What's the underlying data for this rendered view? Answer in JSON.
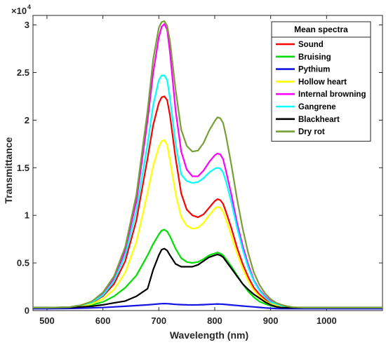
{
  "chart_data": {
    "type": "line",
    "xlabel": "Wavelength (nm)",
    "ylabel": "Transmittance",
    "y_exponent_label": "×10",
    "y_exponent_power": "4",
    "xlim": [
      475,
      1100
    ],
    "ylim": [
      0,
      31000
    ],
    "x_ticks": [
      500,
      600,
      700,
      800,
      900,
      1000
    ],
    "x_tick_labels": [
      "500",
      "600",
      "700",
      "800",
      "900",
      "1000"
    ],
    "y_ticks": [
      0,
      5000,
      10000,
      15000,
      20000,
      25000,
      30000
    ],
    "y_tick_labels": [
      "0",
      "0.5",
      "1",
      "1.5",
      "2",
      "2.5",
      "3"
    ],
    "grid": false,
    "legend": {
      "title": "Mean spectra",
      "position": "top-right"
    },
    "x": [
      475,
      500,
      540,
      560,
      580,
      600,
      620,
      640,
      660,
      680,
      690,
      700,
      705,
      710,
      715,
      720,
      730,
      740,
      750,
      760,
      770,
      780,
      790,
      800,
      805,
      810,
      815,
      820,
      830,
      840,
      850,
      860,
      870,
      880,
      890,
      900,
      910,
      920,
      930,
      940,
      960,
      1000,
      1100
    ],
    "series": [
      {
        "name": "Sound",
        "color": "#ff0000",
        "values": [
          300,
          300,
          350,
          500,
          800,
          1500,
          2800,
          5200,
          9500,
          16000,
          19500,
          21800,
          22400,
          22500,
          22100,
          20500,
          16000,
          12300,
          10600,
          10000,
          9800,
          10100,
          10800,
          11500,
          11700,
          11600,
          11200,
          10400,
          8600,
          6600,
          4900,
          3500,
          2400,
          1700,
          1200,
          800,
          600,
          450,
          350,
          300,
          300,
          300,
          300
        ]
      },
      {
        "name": "Bruising",
        "color": "#00dd00",
        "values": [
          300,
          300,
          350,
          450,
          600,
          900,
          1500,
          2400,
          3700,
          5800,
          7000,
          8000,
          8400,
          8500,
          8300,
          7800,
          6500,
          5500,
          5100,
          5000,
          5100,
          5400,
          5800,
          6000,
          6100,
          6000,
          5800,
          5400,
          4600,
          3700,
          2800,
          2000,
          1400,
          950,
          700,
          500,
          400,
          350,
          300,
          300,
          300,
          300,
          300
        ]
      },
      {
        "name": "Pythium",
        "color": "#1414e6",
        "values": [
          200,
          200,
          220,
          250,
          280,
          320,
          380,
          450,
          520,
          600,
          650,
          700,
          720,
          730,
          720,
          700,
          650,
          620,
          600,
          590,
          600,
          620,
          650,
          680,
          690,
          680,
          660,
          630,
          580,
          530,
          480,
          430,
          380,
          330,
          280,
          240,
          210,
          200,
          200,
          200,
          200,
          200,
          200
        ]
      },
      {
        "name": "Hollow heart",
        "color": "#ffff00",
        "values": [
          300,
          300,
          350,
          450,
          700,
          1200,
          2200,
          4000,
          7200,
          12400,
          15200,
          17200,
          17800,
          17900,
          17400,
          15800,
          12300,
          9800,
          8900,
          8600,
          8700,
          9200,
          10000,
          10700,
          10900,
          10800,
          10400,
          9600,
          7800,
          6000,
          4400,
          3100,
          2100,
          1500,
          1000,
          700,
          550,
          400,
          350,
          300,
          300,
          300,
          300
        ]
      },
      {
        "name": "Internal browning",
        "color": "#ff00ff",
        "values": [
          300,
          300,
          350,
          550,
          900,
          1800,
          3300,
          6300,
          11500,
          20000,
          25000,
          28700,
          29800,
          30100,
          29500,
          27100,
          21000,
          16700,
          14800,
          14100,
          14100,
          14700,
          15600,
          16300,
          16500,
          16400,
          15900,
          14700,
          12100,
          9200,
          6800,
          4800,
          3200,
          2200,
          1500,
          1000,
          700,
          500,
          400,
          300,
          300,
          300,
          300
        ]
      },
      {
        "name": "Gangrene",
        "color": "#00ffff",
        "values": [
          300,
          300,
          350,
          550,
          850,
          1600,
          3100,
          5800,
          10500,
          17500,
          21600,
          24200,
          24700,
          24700,
          24200,
          22300,
          17500,
          14300,
          13600,
          13400,
          13500,
          13900,
          14500,
          14900,
          15000,
          14900,
          14500,
          13600,
          11300,
          8700,
          6400,
          4500,
          3100,
          2100,
          1400,
          900,
          700,
          500,
          400,
          300,
          300,
          300,
          300
        ]
      },
      {
        "name": "Blackheart",
        "color": "#000000",
        "values": [
          300,
          300,
          320,
          380,
          450,
          600,
          800,
          1000,
          1500,
          2300,
          4300,
          5800,
          6400,
          6500,
          6300,
          5800,
          4900,
          4600,
          4600,
          4600,
          4800,
          5200,
          5600,
          5800,
          5900,
          5800,
          5600,
          5200,
          4400,
          3600,
          2800,
          2200,
          1700,
          1300,
          900,
          600,
          400,
          300,
          300,
          300,
          300,
          300,
          300
        ]
      },
      {
        "name": "Dry rot",
        "color": "#76a035",
        "values": [
          300,
          300,
          350,
          550,
          950,
          1900,
          3600,
          6700,
          12200,
          21000,
          26400,
          29700,
          30300,
          30400,
          29900,
          28300,
          23200,
          19000,
          17300,
          16700,
          16800,
          17600,
          18900,
          19900,
          20300,
          20200,
          19700,
          18400,
          15200,
          11700,
          8600,
          6000,
          4000,
          2700,
          1800,
          1200,
          800,
          600,
          450,
          350,
          300,
          300,
          300
        ]
      }
    ]
  }
}
